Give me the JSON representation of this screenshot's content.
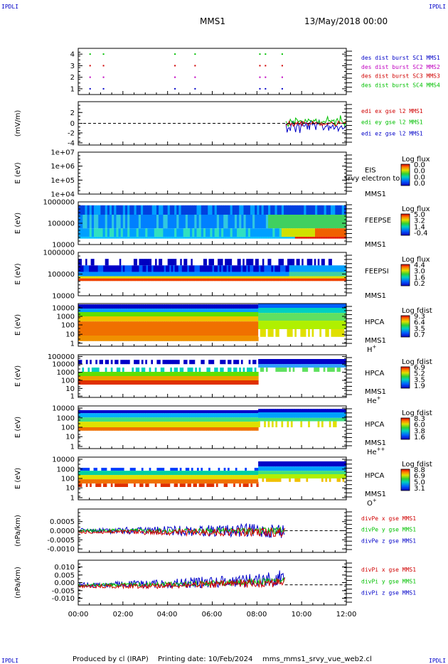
{
  "header": {
    "corner_label": "IPDLI",
    "mission": "MMS1",
    "datetime": "13/May/2018 00:00"
  },
  "footer": {
    "produced_by": "Produced by cl (IRAP)",
    "printing_date": "Printing date: 10/Feb/2024",
    "filename": "mms_mms1_srvy_vue_web2.cl"
  },
  "x_axis": {
    "range_hours": [
      0,
      12
    ],
    "tick_labels": [
      "00:00",
      "02:00",
      "04:00",
      "06:00",
      "08:00",
      "10:00",
      "12:00"
    ]
  },
  "colors": {
    "blue": "#0000c8",
    "green": "#00c000",
    "red": "#d00000",
    "magenta": "#c000c0",
    "black": "#000000"
  },
  "chart_data": [
    {
      "type": "scatter",
      "ylabel": "",
      "yticks": [
        "4",
        "3",
        "2",
        "1"
      ],
      "ylim": [
        0.5,
        4.5
      ],
      "legend": [
        {
          "label": "des dist burst SC1 MMS1",
          "color": "#0000c8"
        },
        {
          "label": "des dist burst SC2 MMS2",
          "color": "#c000c0"
        },
        {
          "label": "des dist burst SC3 MMS3",
          "color": "#d00000"
        },
        {
          "label": "des dist burst SC4 MMS4",
          "color": "#00c000"
        }
      ],
      "series": [
        {
          "name": "des dist burst SC1 MMS1",
          "y": 1,
          "x_hours": [
            0.5,
            1.1,
            4.3,
            5.2,
            8.1,
            8.35,
            9.1
          ]
        },
        {
          "name": "des dist burst SC2 MMS2",
          "y": 2,
          "x_hours": [
            0.5,
            1.1,
            4.3,
            5.2,
            8.1,
            8.35,
            9.1
          ]
        },
        {
          "name": "des dist burst SC3 MMS3",
          "y": 3,
          "x_hours": [
            0.5,
            1.1,
            4.3,
            5.2,
            8.1,
            8.35,
            9.1
          ]
        },
        {
          "name": "des dist burst SC4 MMS4",
          "y": 4,
          "x_hours": [
            0.5,
            1.1,
            4.3,
            5.2,
            8.1,
            8.35,
            9.1
          ]
        }
      ]
    },
    {
      "type": "line",
      "ylabel": "(mV/m)",
      "yticks": [
        "2",
        "0",
        "-2",
        "-4"
      ],
      "ylim": [
        -4,
        4
      ],
      "data_start_hours": 9.3,
      "legend": [
        {
          "label": "edi ex gse l2 MMS1",
          "color": "#d00000"
        },
        {
          "label": "edi ey gse l2 MMS1",
          "color": "#00c000"
        },
        {
          "label": "edi ez gse l2 MMS1",
          "color": "#0000c8"
        }
      ]
    },
    {
      "type": "heatmap",
      "ylabel": "E (eV)",
      "yticks": [
        "1e+07",
        "1e+06",
        "1e+05",
        "1e+04"
      ],
      "ylim": [
        10000,
        10000000
      ],
      "instrument": "EIS",
      "spacecraft": "MMS1",
      "overlay_text": "srvy electron to",
      "colorbar": {
        "title": "Log flux",
        "labels": [
          "0.0",
          "0.0",
          "0.0",
          "0.0"
        ]
      }
    },
    {
      "type": "heatmap",
      "ylabel": "E (eV)",
      "yticks": [
        "1000000",
        "100000",
        "10000"
      ],
      "ylim": [
        10000,
        1000000
      ],
      "instrument": "FEEPSE",
      "spacecraft": "MMS1",
      "colorbar": {
        "title": "Log flux",
        "labels": [
          "5.0",
          "3.2",
          "1.4",
          "-0.4"
        ]
      }
    },
    {
      "type": "heatmap",
      "ylabel": "E (eV)",
      "yticks": [
        "1000000",
        "100000",
        "10000"
      ],
      "ylim": [
        10000,
        1000000
      ],
      "instrument": "FEEPSI",
      "spacecraft": "MMS1",
      "colorbar": {
        "title": "Log flux",
        "labels": [
          "4.4",
          "3.0",
          "1.6",
          "0.2"
        ]
      }
    },
    {
      "type": "heatmap",
      "ylabel": "E (eV)",
      "yticks": [
        "10000",
        "1000",
        "100",
        "10",
        "1"
      ],
      "ylim": [
        1,
        40000
      ],
      "instrument": "HPCA",
      "spacecraft": "MMS1",
      "species": "H",
      "species_sup": "+",
      "colorbar": {
        "title": "Log fdist",
        "labels": [
          "9.3",
          "6.4",
          "3.5",
          "0.7"
        ]
      }
    },
    {
      "type": "heatmap",
      "ylabel": "E (eV)",
      "yticks": [
        "100000",
        "10000",
        "1000",
        "100",
        "10",
        "1"
      ],
      "ylim": [
        1,
        100000
      ],
      "instrument": "HPCA",
      "spacecraft": "MMS1",
      "species": "He",
      "species_sup": "+",
      "colorbar": {
        "title": "Log fdist",
        "labels": [
          "6.9",
          "5.2",
          "3.5",
          "1.9"
        ]
      }
    },
    {
      "type": "heatmap",
      "ylabel": "E (eV)",
      "yticks": [
        "10000",
        "1000",
        "100",
        "10",
        "1"
      ],
      "ylim": [
        1,
        20000
      ],
      "instrument": "HPCA",
      "spacecraft": "MMS1",
      "species": "He",
      "species_sup": "++",
      "colorbar": {
        "title": "Log fdist",
        "labels": [
          "8.3",
          "6.0",
          "3.8",
          "1.6"
        ]
      }
    },
    {
      "type": "heatmap",
      "ylabel": "E (eV)",
      "yticks": [
        "10000",
        "1000",
        "100",
        "10",
        "1"
      ],
      "ylim": [
        1,
        20000
      ],
      "instrument": "HPCA",
      "spacecraft": "MMS1",
      "species": "O",
      "species_sup": "+",
      "colorbar": {
        "title": "Log fdist",
        "labels": [
          "8.8",
          "6.9",
          "5.0",
          "3.1"
        ]
      }
    },
    {
      "type": "line",
      "ylabel": "(nPa/km)",
      "yticks": [
        "0.0005",
        "0.0000",
        "-0.0005",
        "-0.0010"
      ],
      "ylim": [
        -0.0011,
        0.0009
      ],
      "data_end_hours": 9.25,
      "legend": [
        {
          "label": "divPe x gse MMS1",
          "color": "#d00000"
        },
        {
          "label": "divPe y gse MMS1",
          "color": "#00c000"
        },
        {
          "label": "divPe z gse MMS1",
          "color": "#0000c8"
        }
      ]
    },
    {
      "type": "line",
      "ylabel": "(nPa/km)",
      "yticks": [
        "0.010",
        "0.005",
        "0.000",
        "-0.005",
        "-0.010"
      ],
      "ylim": [
        -0.0125,
        0.015
      ],
      "data_end_hours": 9.25,
      "legend": [
        {
          "label": "divPi x gse MMS1",
          "color": "#d00000"
        },
        {
          "label": "divPi y gse MMS1",
          "color": "#00c000"
        },
        {
          "label": "divPi z gse MMS1",
          "color": "#0000c8"
        }
      ]
    }
  ]
}
